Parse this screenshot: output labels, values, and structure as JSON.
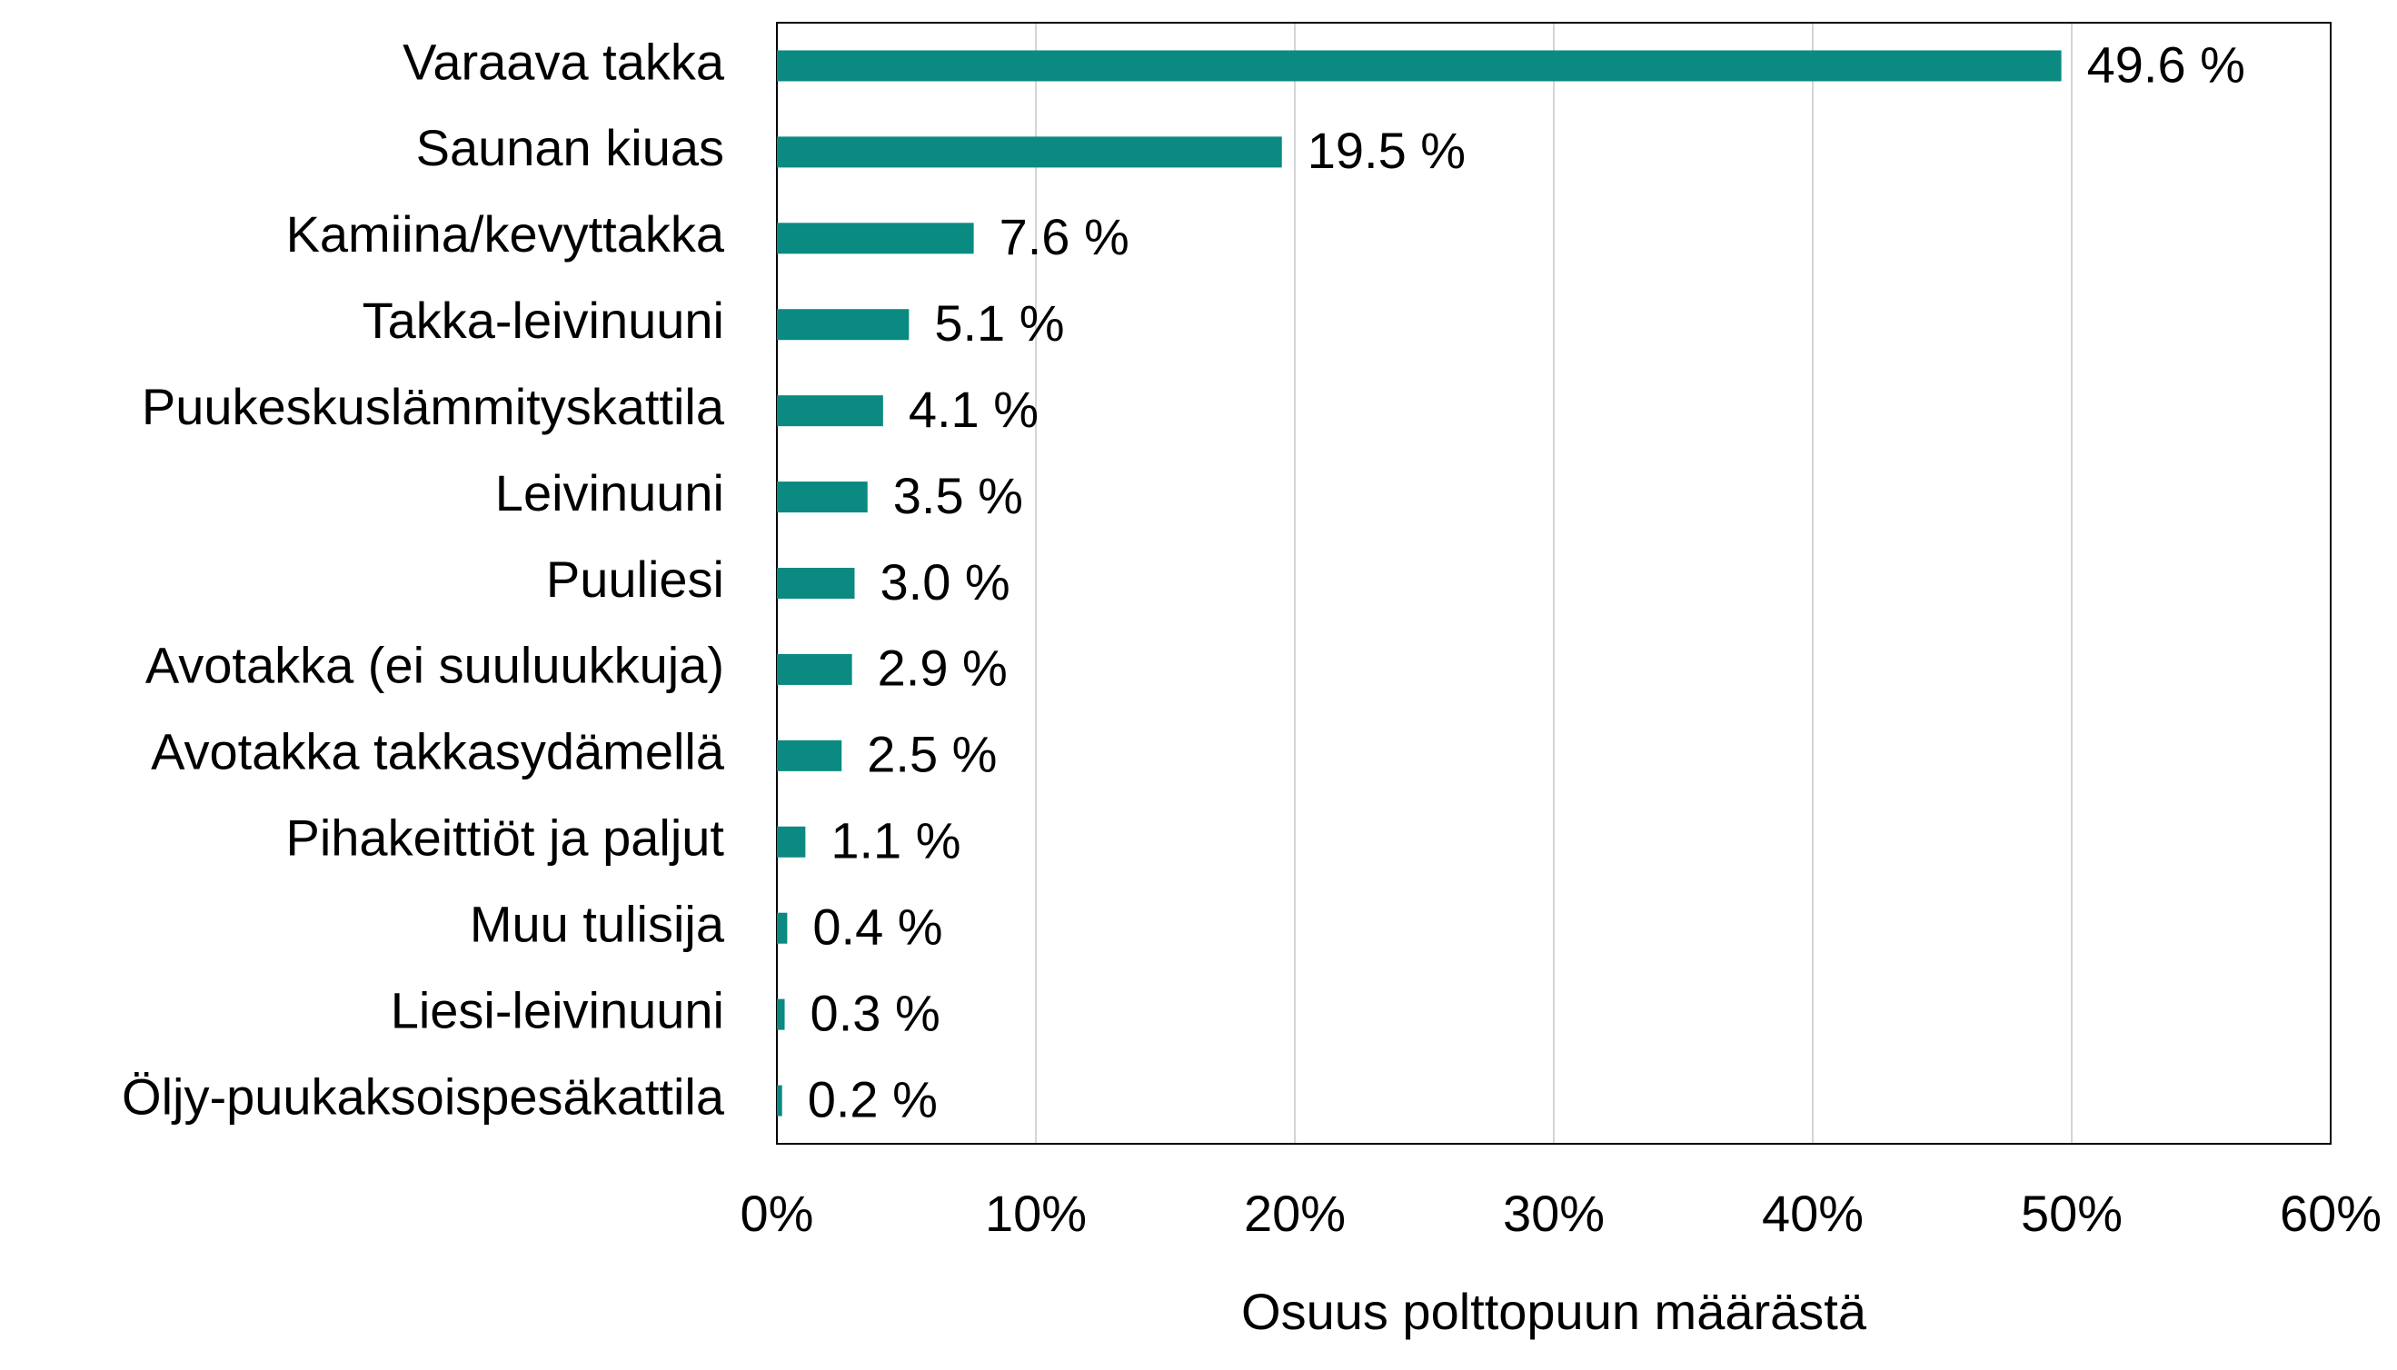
{
  "chart_data": {
    "type": "bar",
    "orientation": "horizontal",
    "x_label": "Osuus polttopuun määrästä",
    "categories": [
      "Varaava takka",
      "Saunan kiuas",
      "Kamiina/kevyttakka",
      "Takka-leivinuuni",
      "Puukeskuslämmityskattila",
      "Leivinuuni",
      "Puuliesi",
      "Avotakka (ei suuluukkuja)",
      "Avotakka takkasydämellä",
      "Pihakeittiöt ja paljut",
      "Muu tulisija",
      "Liesi-leivinuuni",
      "Öljy-puukaksoispesäkattila"
    ],
    "values": [
      49.6,
      19.5,
      7.6,
      5.1,
      4.1,
      3.5,
      3.0,
      2.9,
      2.5,
      1.1,
      0.4,
      0.3,
      0.2
    ],
    "value_labels": [
      "49.6 %",
      "19.5 %",
      "7.6 %",
      "5.1 %",
      "4.1 %",
      "3.5 %",
      "3.0 %",
      "2.9 %",
      "2.5 %",
      "1.1 %",
      "0.4 %",
      "0.3 %",
      "0.2 %"
    ],
    "color": "#0a8a80",
    "xlim": [
      0,
      60
    ],
    "xticks": [
      {
        "value": 0,
        "label": "0%"
      },
      {
        "value": 10,
        "label": "10%"
      },
      {
        "value": 20,
        "label": "20%"
      },
      {
        "value": 30,
        "label": "30%"
      },
      {
        "value": 40,
        "label": "40%"
      },
      {
        "value": 50,
        "label": "50%"
      },
      {
        "value": 60,
        "label": "60%"
      }
    ],
    "grid": true
  }
}
